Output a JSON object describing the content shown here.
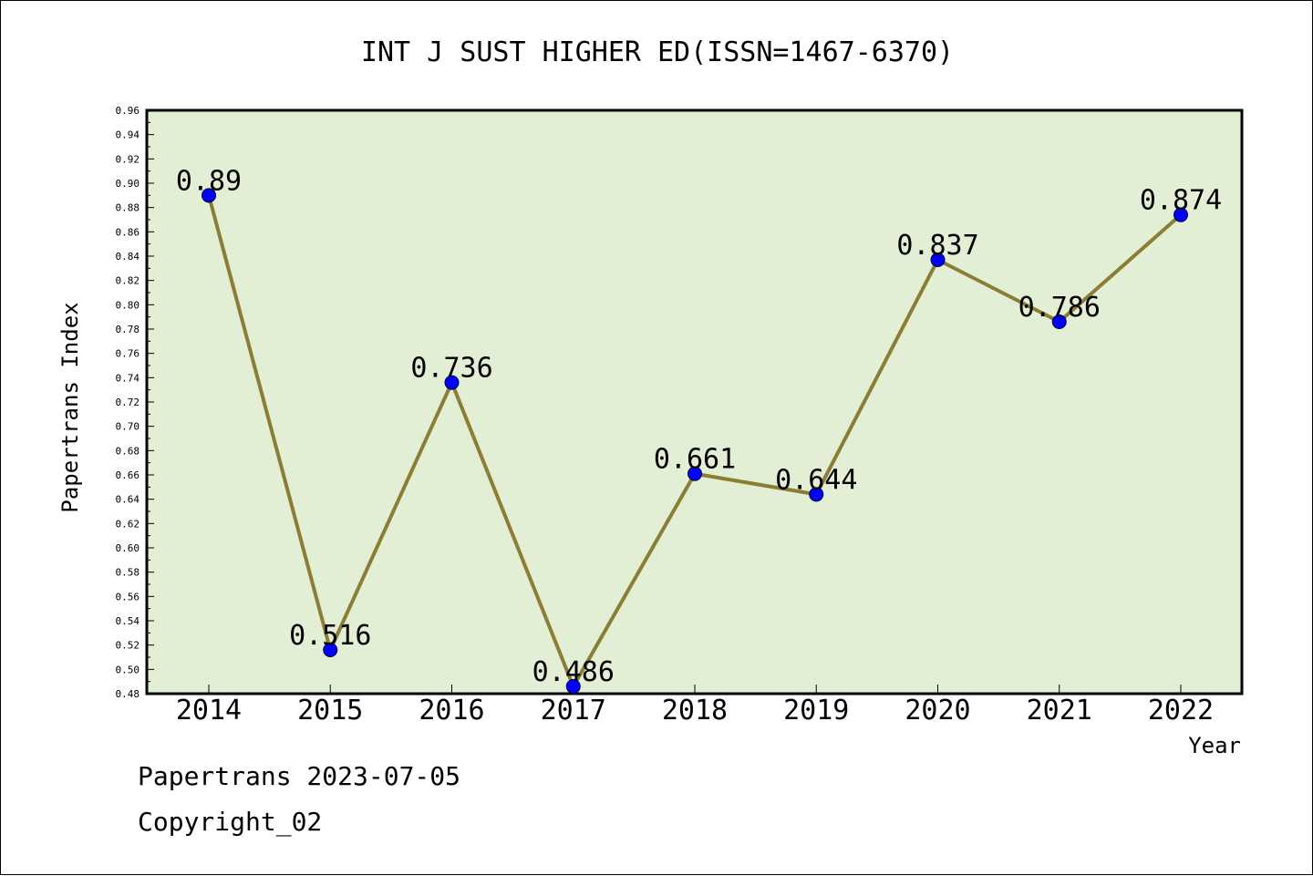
{
  "chart_data": {
    "type": "line",
    "title": "INT J SUST HIGHER ED(ISSN=1467-6370)",
    "xlabel": "Year",
    "ylabel": "Papertrans Index",
    "categories": [
      "2014",
      "2015",
      "2016",
      "2017",
      "2018",
      "2019",
      "2020",
      "2021",
      "2022"
    ],
    "series": [
      {
        "values": [
          0.89,
          0.516,
          0.736,
          0.486,
          0.661,
          0.644,
          0.837,
          0.786,
          0.874
        ],
        "labels": [
          "0.89",
          "0.516",
          "0.736",
          "0.486",
          "0.661",
          "0.644",
          "0.837",
          "0.786",
          "0.874"
        ]
      }
    ],
    "ylim": [
      0.48,
      0.96
    ],
    "yticks": [
      "0.48",
      "0.50",
      "0.52",
      "0.54",
      "0.56",
      "0.58",
      "0.60",
      "0.62",
      "0.64",
      "0.66",
      "0.68",
      "0.70",
      "0.72",
      "0.74",
      "0.76",
      "0.78",
      "0.80",
      "0.82",
      "0.84",
      "0.86",
      "0.88",
      "0.90",
      "0.92",
      "0.94",
      "0.96"
    ],
    "grid": false,
    "legend": "none",
    "colors": {
      "plot_background": "#e2efd5",
      "line": "#8b7d32",
      "marker": "#0000ff",
      "axis": "#000000"
    }
  },
  "footer": {
    "date_line": "Papertrans 2023-07-05",
    "copyright": "Copyright_02"
  }
}
